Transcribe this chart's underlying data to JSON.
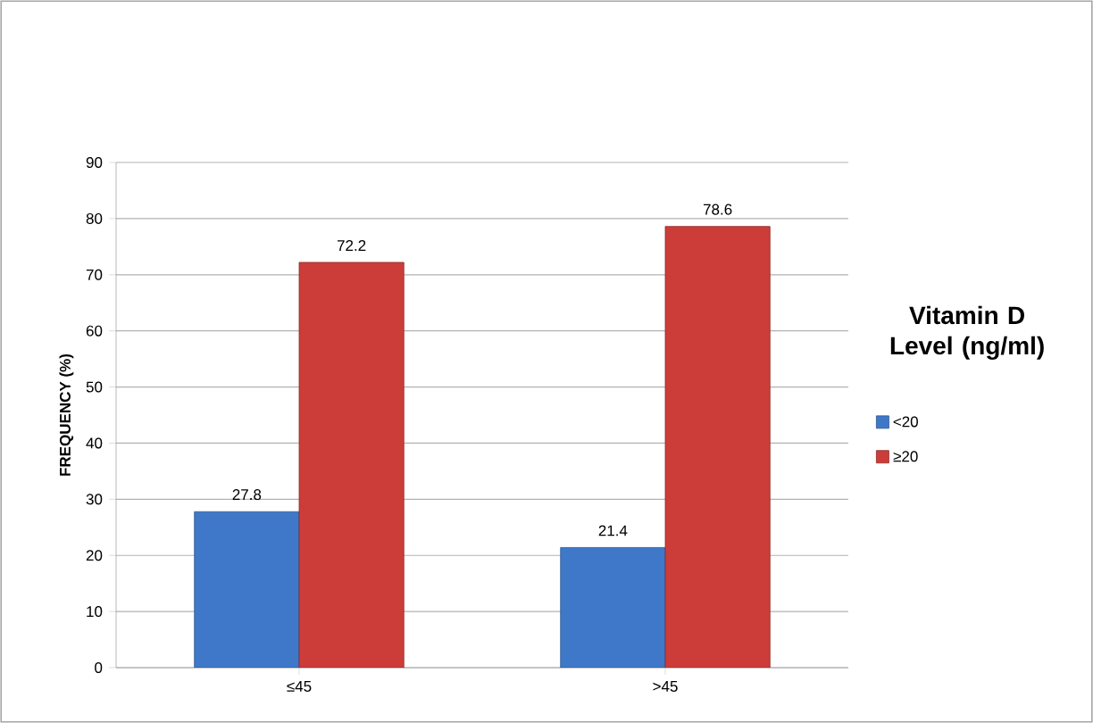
{
  "chart_data": {
    "type": "bar",
    "ylabel": "FREQUENCY (%)",
    "legend_title": "Vitamin D Level (ng/ml)",
    "categories": [
      "≤45",
      ">45"
    ],
    "series": [
      {
        "name": "<20",
        "color": "#3f78c8",
        "values": [
          27.8,
          21.4
        ],
        "value_labels": [
          "27.8",
          "21.4"
        ]
      },
      {
        "name": "≥20",
        "color": "#cc3d39",
        "values": [
          72.2,
          78.6
        ],
        "value_labels": [
          "72.2",
          "78.6"
        ]
      }
    ],
    "ylim": [
      0,
      90
    ],
    "yticks": [
      0,
      10,
      20,
      30,
      40,
      50,
      60,
      70,
      80,
      90
    ],
    "grid": "y",
    "legend": "right"
  }
}
